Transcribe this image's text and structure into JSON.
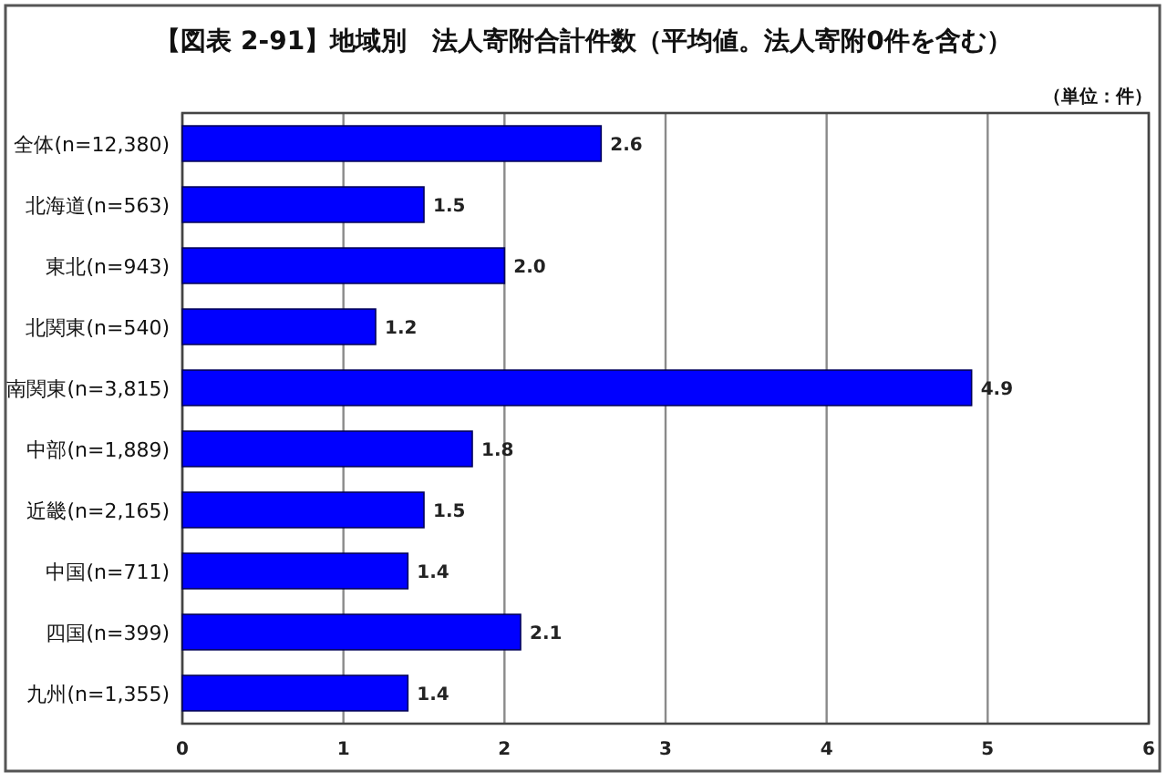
{
  "chart_data": {
    "type": "bar",
    "orientation": "horizontal",
    "title": "【図表 2-91】地域別　法人寄附合計件数（平均値。法人寄附0件を含む）",
    "annotations": [
      "（単位：件）"
    ],
    "categories": [
      "全体(n=12,380)",
      "北海道(n=563)",
      "東北(n=943)",
      "北関東(n=540)",
      "南関東(n=3,815)",
      "中部(n=1,889)",
      "近畿(n=2,165)",
      "中国(n=711)",
      "四国(n=399)",
      "九州(n=1,355)"
    ],
    "values": [
      2.6,
      1.5,
      2.0,
      1.2,
      4.9,
      1.8,
      1.5,
      1.4,
      2.1,
      1.4
    ],
    "value_labels": [
      "2.6",
      "1.5",
      "2.0",
      "1.2",
      "4.9",
      "1.8",
      "1.5",
      "1.4",
      "2.1",
      "1.4"
    ],
    "color": "#0000ff",
    "xlim": [
      0,
      6
    ],
    "xticks": [
      0,
      1,
      2,
      3,
      4,
      5,
      6
    ],
    "grid": "x"
  }
}
